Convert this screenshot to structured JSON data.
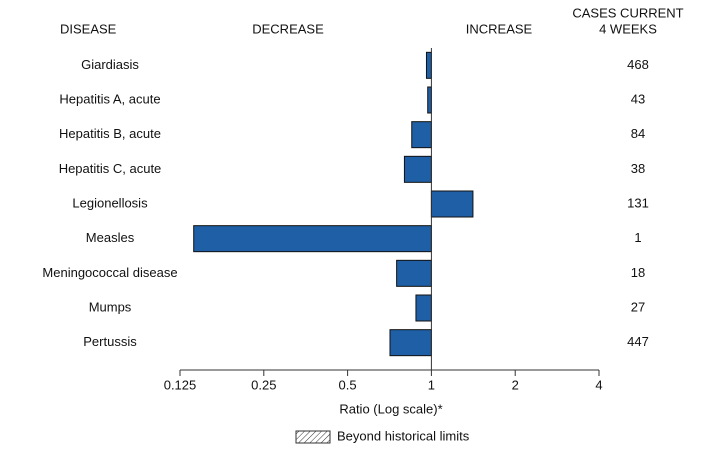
{
  "chart_data": {
    "type": "bar",
    "orientation": "horizontal",
    "headers": {
      "disease": "DISEASE",
      "decrease": "DECREASE",
      "increase": "INCREASE",
      "cases": [
        "CASES CURRENT",
        "4 WEEKS"
      ]
    },
    "categories": [
      "Giardiasis",
      "Hepatitis A, acute",
      "Hepatitis B, acute",
      "Hepatitis C, acute",
      "Legionellosis",
      "Measles",
      "Meningococcal disease",
      "Mumps",
      "Pertussis"
    ],
    "values": [
      0.96,
      0.97,
      0.85,
      0.8,
      1.41,
      0.14,
      0.75,
      0.88,
      0.71
    ],
    "cases": [
      468,
      43,
      84,
      38,
      131,
      1,
      18,
      27,
      447
    ],
    "color": "#1f5fa6",
    "xlim": [
      0.125,
      4
    ],
    "xticks": [
      0.125,
      0.25,
      0.5,
      1,
      2,
      4
    ],
    "log_scale": true,
    "xlabel": "Ratio (Log scale)*",
    "legend": "Beyond historical limits"
  }
}
